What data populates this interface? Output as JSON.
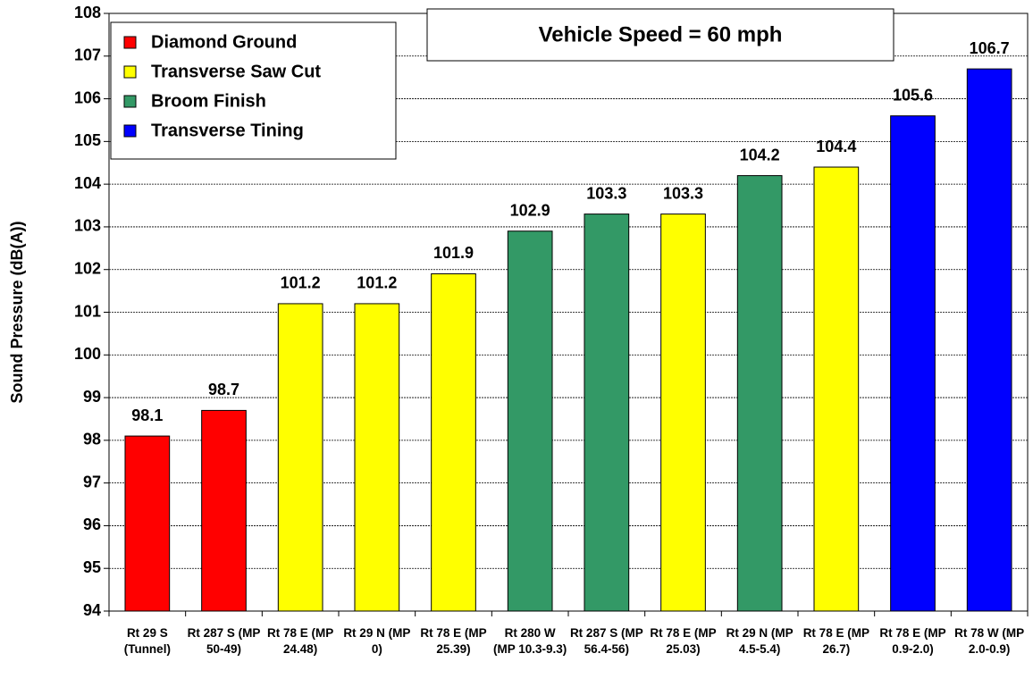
{
  "chart_data": {
    "type": "bar",
    "title": "Vehicle Speed = 60 mph",
    "y_label": "Sound Pressure (dB(A))",
    "categories": [
      "Rt 29 S (Tunnel)",
      "Rt 287 S (MP 50-49)",
      "Rt 78 E (MP 24.48)",
      "Rt 29 N (MP 0)",
      "Rt 78 E (MP 25.39)",
      "Rt 280 W (MP 10.3-9.3)",
      "Rt 287 S (MP 56.4-56)",
      "Rt 78 E (MP 25.03)",
      "Rt 29 N (MP 4.5-5.4)",
      "Rt 78 E (MP 26.7)",
      "Rt 78 E (MP 0.9-2.0)",
      "Rt 78 W (MP 2.0-0.9)"
    ],
    "series": [
      {
        "name": "Diamond Ground",
        "color": "#ff0000",
        "values": [
          98.1,
          98.7,
          null,
          null,
          null,
          null,
          null,
          null,
          null,
          null,
          null,
          null
        ]
      },
      {
        "name": "Transverse Saw Cut",
        "color": "#ffff00",
        "values": [
          null,
          null,
          101.2,
          101.2,
          101.9,
          null,
          null,
          103.3,
          null,
          104.4,
          null,
          null
        ]
      },
      {
        "name": "Broom Finish",
        "color": "#339966",
        "values": [
          null,
          null,
          null,
          null,
          null,
          102.9,
          103.3,
          null,
          104.2,
          null,
          null,
          null
        ]
      },
      {
        "name": "Transverse Tining",
        "color": "#0000ff",
        "values": [
          null,
          null,
          null,
          null,
          null,
          null,
          null,
          null,
          null,
          null,
          105.6,
          106.7
        ]
      }
    ],
    "ylim": [
      94,
      108
    ],
    "yticks": [
      94,
      95,
      96,
      97,
      98,
      99,
      100,
      101,
      102,
      103,
      104,
      105,
      106,
      107,
      108
    ],
    "grid": true,
    "legend": "upper-left"
  }
}
